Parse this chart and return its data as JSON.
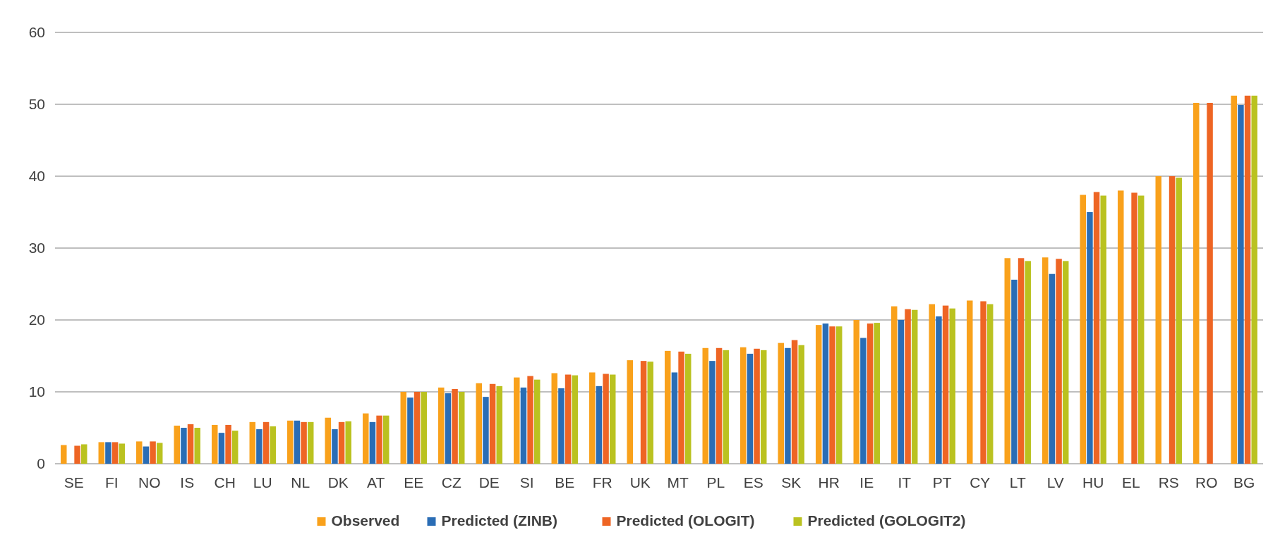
{
  "chart_data": {
    "type": "bar",
    "categories": [
      "SE",
      "FI",
      "NO",
      "IS",
      "CH",
      "LU",
      "NL",
      "DK",
      "AT",
      "EE",
      "CZ",
      "DE",
      "SI",
      "BE",
      "FR",
      "UK",
      "MT",
      "PL",
      "ES",
      "SK",
      "HR",
      "IE",
      "IT",
      "PT",
      "CY",
      "LT",
      "LV",
      "HU",
      "EL",
      "RS",
      "RO",
      "BG"
    ],
    "series": [
      {
        "name": "Observed",
        "color": "#f9a11b",
        "values": [
          2.6,
          3.0,
          3.1,
          5.3,
          5.4,
          5.8,
          6.0,
          6.4,
          7.0,
          10.0,
          10.6,
          11.2,
          12.0,
          12.6,
          12.7,
          14.4,
          15.7,
          16.1,
          16.2,
          16.8,
          19.3,
          20.0,
          21.9,
          22.2,
          22.7,
          28.6,
          28.7,
          37.4,
          38.0,
          40.0,
          50.2,
          51.2
        ]
      },
      {
        "name": "Predicted (ZINB)",
        "color": "#2a6db5",
        "values": [
          null,
          3.0,
          2.4,
          5.0,
          4.3,
          4.8,
          6.0,
          4.8,
          5.8,
          9.2,
          9.8,
          9.3,
          10.6,
          10.5,
          10.8,
          null,
          12.7,
          14.3,
          15.3,
          16.1,
          19.5,
          17.5,
          20.0,
          20.5,
          null,
          25.6,
          26.4,
          35.0,
          null,
          null,
          null,
          49.9
        ]
      },
      {
        "name": "Predicted (OLOGIT)",
        "color": "#ee6524",
        "values": [
          2.5,
          3.0,
          3.1,
          5.5,
          5.4,
          5.8,
          5.8,
          5.8,
          6.7,
          10.0,
          10.4,
          11.1,
          12.2,
          12.4,
          12.5,
          14.3,
          15.6,
          16.1,
          16.0,
          17.2,
          19.1,
          19.5,
          21.5,
          22.0,
          22.6,
          28.6,
          28.5,
          37.8,
          37.7,
          40.0,
          50.2,
          51.2
        ]
      },
      {
        "name": "Predicted (GOLOGIT2)",
        "color": "#bac220",
        "values": [
          2.7,
          2.8,
          2.9,
          5.0,
          4.6,
          5.2,
          5.8,
          5.9,
          6.7,
          10.0,
          10.0,
          10.8,
          11.7,
          12.3,
          12.4,
          14.2,
          15.3,
          15.8,
          15.8,
          16.5,
          19.1,
          19.6,
          21.4,
          21.6,
          22.2,
          28.2,
          28.2,
          37.3,
          37.3,
          39.8,
          null,
          51.2
        ]
      }
    ],
    "ylim": [
      0,
      60
    ],
    "yticks": [
      0,
      10,
      20,
      30,
      40,
      50,
      60
    ],
    "grid": "y",
    "legend": "bottom"
  }
}
